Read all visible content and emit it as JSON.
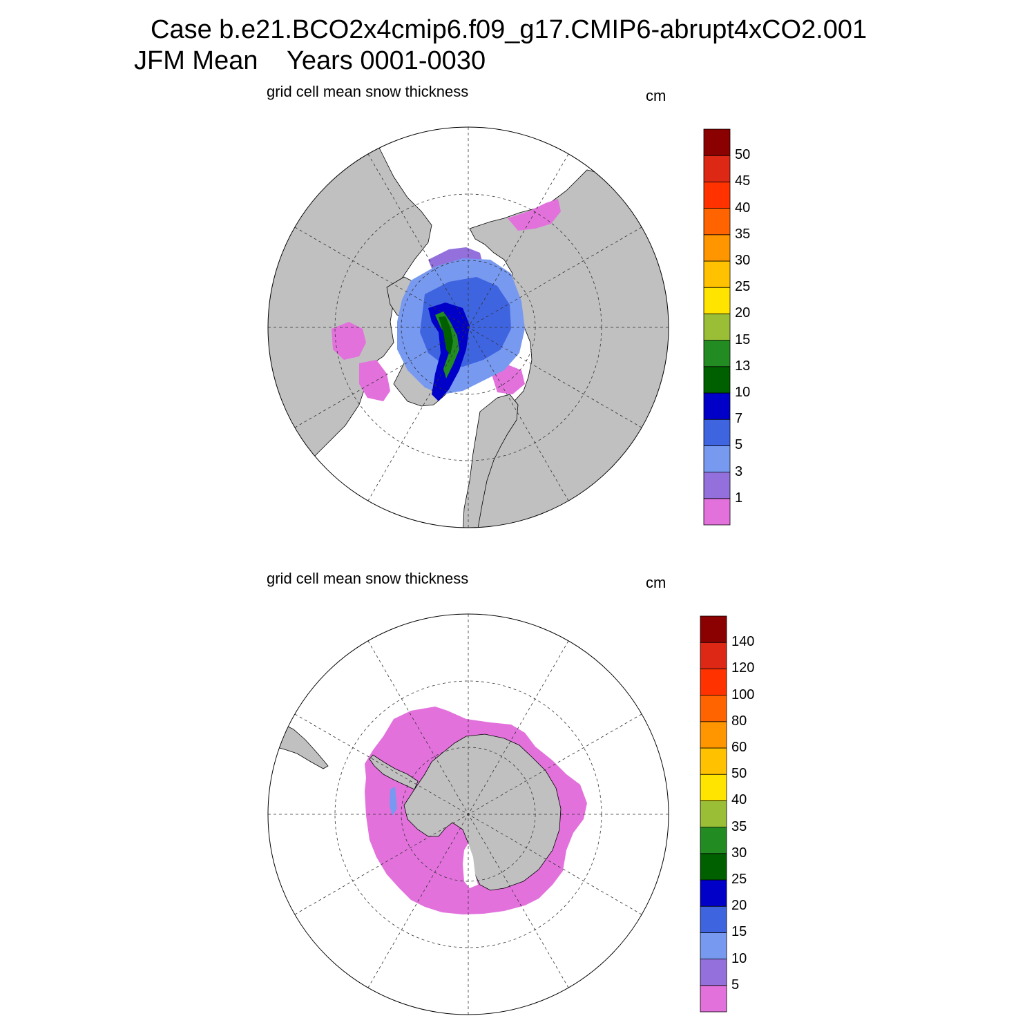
{
  "title": {
    "line1": "Case b.e21.BCO2x4cmip6.f09_g17.CMIP6-abrupt4xCO2.001",
    "line2": "JFM Mean    Years 0001-0030"
  },
  "panels": [
    {
      "id": "arctic",
      "hemisphere": "north",
      "variable": "grid cell mean snow thickness",
      "units": "cm",
      "colorbar": {
        "levels": [
          "1",
          "3",
          "5",
          "7",
          "10",
          "13",
          "15",
          "20",
          "25",
          "30",
          "35",
          "40",
          "45",
          "50"
        ],
        "colors": [
          "#e371dc",
          "#9370dc",
          "#7799f0",
          "#3e64e0",
          "#0000c8",
          "#006000",
          "#228b22",
          "#9abf36",
          "#ffe400",
          "#ffc100",
          "#ff9600",
          "#ff6400",
          "#ff3200",
          "#dc2814",
          "#8b0000"
        ]
      },
      "land_color": "#c0c0c0",
      "ocean_color": "#ffffff"
    },
    {
      "id": "antarctic",
      "hemisphere": "south",
      "variable": "grid cell mean snow thickness",
      "units": "cm",
      "colorbar": {
        "levels": [
          "5",
          "10",
          "15",
          "20",
          "25",
          "30",
          "35",
          "40",
          "50",
          "60",
          "80",
          "100",
          "120",
          "140"
        ],
        "colors": [
          "#e371dc",
          "#9370dc",
          "#7799f0",
          "#3e64e0",
          "#0000c8",
          "#006000",
          "#228b22",
          "#9abf36",
          "#ffe400",
          "#ffc100",
          "#ff9600",
          "#ff6400",
          "#ff3200",
          "#dc2814",
          "#8b0000"
        ]
      },
      "land_color": "#c0c0c0",
      "ocean_color": "#ffffff"
    }
  ]
}
